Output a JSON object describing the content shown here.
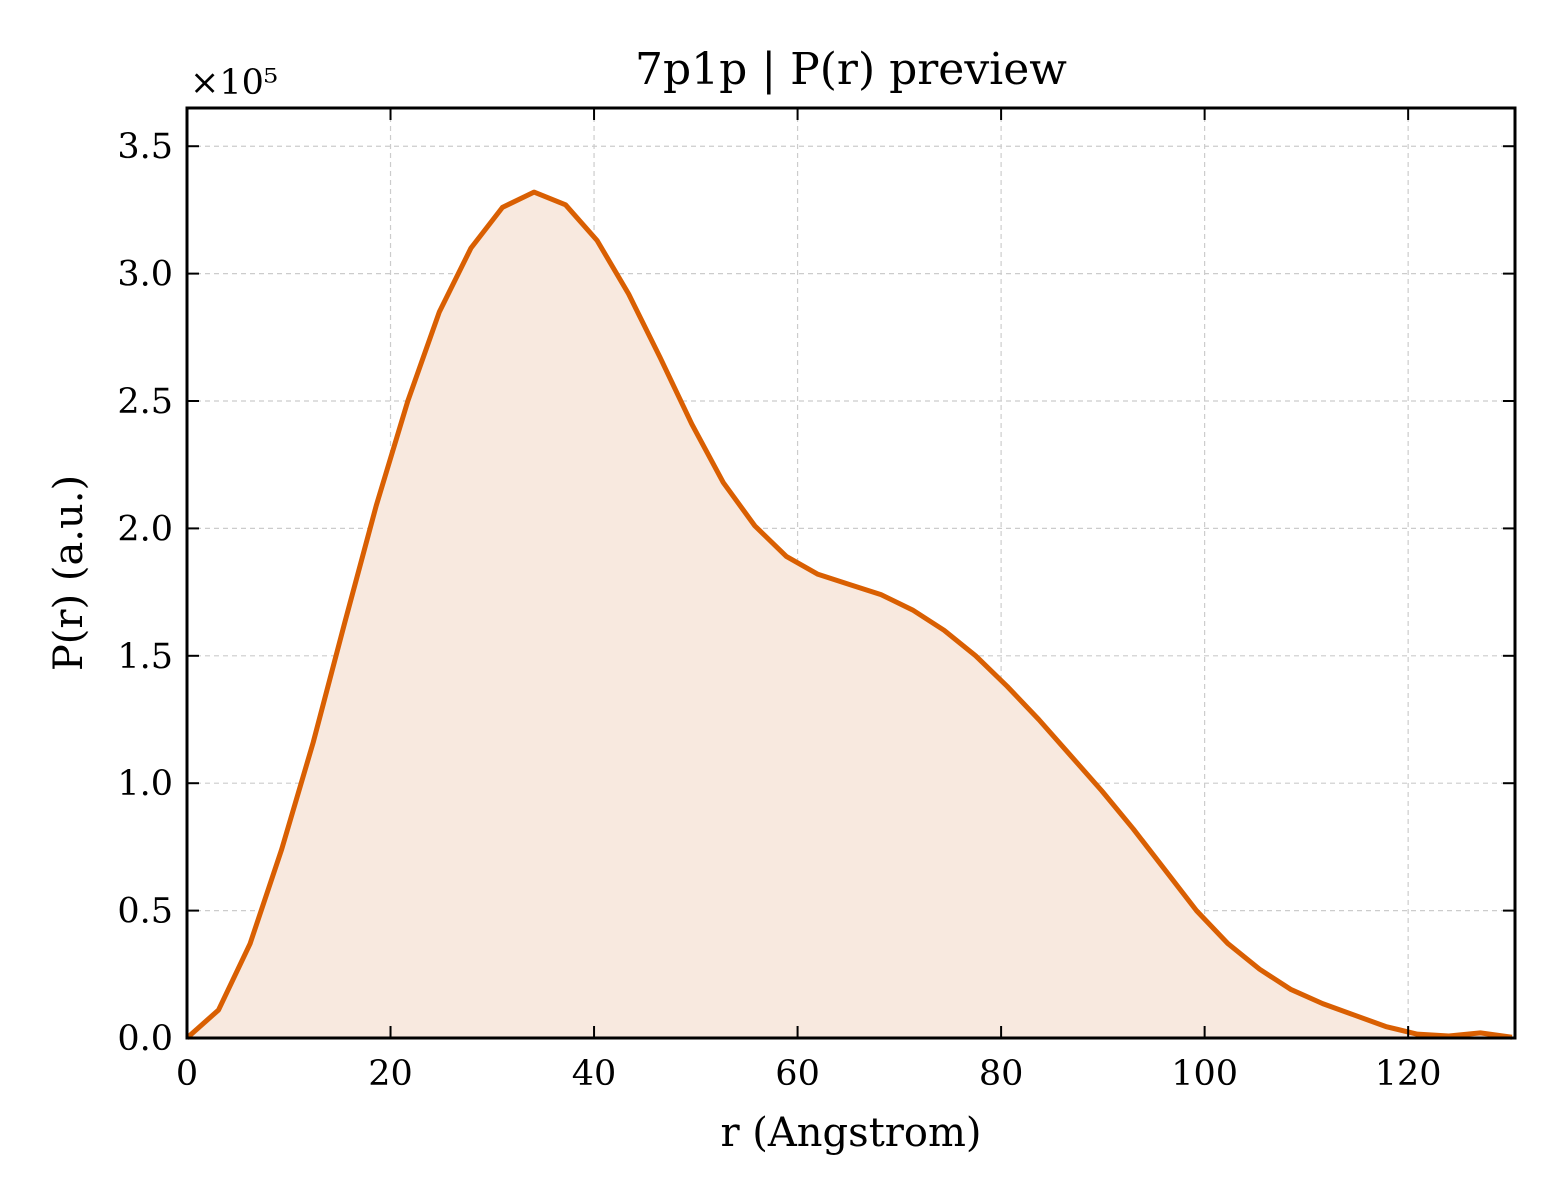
{
  "chart_data": {
    "type": "area",
    "title": "7p1p | P(r) preview",
    "xlabel": "r (Angstrom)",
    "ylabel": "P(r) (a.u.)",
    "y_offset_text": "×10⁵",
    "xlim": [
      0,
      130.5
    ],
    "ylim": [
      0,
      3.65
    ],
    "y_scale_factor": 100000,
    "grid": true,
    "grid_style": "dashed",
    "ticks_direction": "in",
    "x_ticks": [
      0,
      20,
      40,
      60,
      80,
      100,
      120
    ],
    "x_tick_labels": [
      "0",
      "20",
      "40",
      "60",
      "80",
      "100",
      "120"
    ],
    "y_ticks": [
      0.0,
      0.5,
      1.0,
      1.5,
      2.0,
      2.5,
      3.0,
      3.5
    ],
    "y_tick_labels": [
      "0.0",
      "0.5",
      "1.0",
      "1.5",
      "2.0",
      "2.5",
      "3.0",
      "3.5"
    ],
    "line_color": "#D95F02",
    "fill_color": "#F8E9DF",
    "series": [
      {
        "x": [
          0,
          3.1,
          6.2,
          9.3,
          12.4,
          15.5,
          18.6,
          21.7,
          24.8,
          27.9,
          31.0,
          34.1,
          37.2,
          40.3,
          43.4,
          46.5,
          49.6,
          52.7,
          55.8,
          58.9,
          62.0,
          65.1,
          68.2,
          71.3,
          74.4,
          77.5,
          80.6,
          83.7,
          86.8,
          89.9,
          93.0,
          96.1,
          99.2,
          102.3,
          105.4,
          108.5,
          111.6,
          114.7,
          117.8,
          120.9,
          124.0,
          127.1,
          130.2
        ],
        "y": [
          0.0,
          0.11,
          0.37,
          0.74,
          1.16,
          1.63,
          2.09,
          2.5,
          2.85,
          3.1,
          3.26,
          3.32,
          3.27,
          3.13,
          2.92,
          2.67,
          2.41,
          2.18,
          2.01,
          1.89,
          1.82,
          1.78,
          1.74,
          1.68,
          1.6,
          1.5,
          1.38,
          1.25,
          1.11,
          0.97,
          0.82,
          0.66,
          0.5,
          0.37,
          0.27,
          0.19,
          0.135,
          0.09,
          0.045,
          0.015,
          0.008,
          0.02,
          0.003
        ]
      }
    ]
  }
}
